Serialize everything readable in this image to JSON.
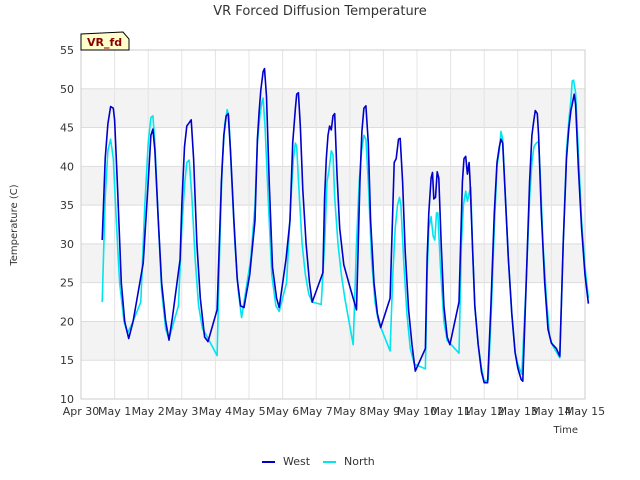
{
  "chart_data": {
    "type": "line",
    "title": "VR Forced Diffusion Temperature",
    "xlabel": "Time",
    "ylabel": "Temperature (C)",
    "badge": "VR_fd",
    "xlim": [
      0,
      15
    ],
    "ylim": [
      10,
      55
    ],
    "xticks": [
      {
        "x": 0,
        "label": "Apr 30"
      },
      {
        "x": 1,
        "label": "May 1"
      },
      {
        "x": 2,
        "label": "May 2"
      },
      {
        "x": 3,
        "label": "May 3"
      },
      {
        "x": 4,
        "label": "May 4"
      },
      {
        "x": 5,
        "label": "May 5"
      },
      {
        "x": 6,
        "label": "May 6"
      },
      {
        "x": 7,
        "label": "May 7"
      },
      {
        "x": 8,
        "label": "May 8"
      },
      {
        "x": 9,
        "label": "May 9"
      },
      {
        "x": 10,
        "label": "May 10"
      },
      {
        "x": 11,
        "label": "May 11"
      },
      {
        "x": 12,
        "label": "May 12"
      },
      {
        "x": 13,
        "label": "May 13"
      },
      {
        "x": 14,
        "label": "May 14"
      },
      {
        "x": 15,
        "label": "May 15"
      }
    ],
    "yticks": [
      10,
      15,
      20,
      25,
      30,
      35,
      40,
      45,
      50,
      55
    ],
    "grid": true,
    "legend_position": "bottom-center",
    "series": [
      {
        "name": "West",
        "color": "#0000cc",
        "points": [
          [
            0.63,
            30.5
          ],
          [
            0.72,
            41
          ],
          [
            0.8,
            45.5
          ],
          [
            0.88,
            47.7
          ],
          [
            0.96,
            47.5
          ],
          [
            1.0,
            46
          ],
          [
            1.08,
            38
          ],
          [
            1.2,
            25
          ],
          [
            1.3,
            20
          ],
          [
            1.42,
            17.8
          ],
          [
            1.55,
            20
          ],
          [
            1.85,
            27.5
          ],
          [
            2.0,
            38
          ],
          [
            2.08,
            44
          ],
          [
            2.14,
            44.8
          ],
          [
            2.2,
            42
          ],
          [
            2.3,
            33
          ],
          [
            2.4,
            25
          ],
          [
            2.52,
            20
          ],
          [
            2.62,
            17.6
          ],
          [
            2.72,
            20.5
          ],
          [
            2.95,
            28
          ],
          [
            3.0,
            35
          ],
          [
            3.08,
            42.5
          ],
          [
            3.15,
            45.2
          ],
          [
            3.2,
            45.5
          ],
          [
            3.28,
            46
          ],
          [
            3.35,
            41
          ],
          [
            3.45,
            30
          ],
          [
            3.55,
            23
          ],
          [
            3.68,
            18
          ],
          [
            3.78,
            17.4
          ],
          [
            4.05,
            21.5
          ],
          [
            4.18,
            38
          ],
          [
            4.25,
            44
          ],
          [
            4.32,
            46.5
          ],
          [
            4.38,
            46.8
          ],
          [
            4.45,
            42
          ],
          [
            4.55,
            33
          ],
          [
            4.65,
            25.5
          ],
          [
            4.75,
            22
          ],
          [
            4.85,
            21.8
          ],
          [
            5.02,
            26
          ],
          [
            5.18,
            33
          ],
          [
            5.25,
            43.5
          ],
          [
            5.3,
            47
          ],
          [
            5.35,
            49.8
          ],
          [
            5.42,
            52.2
          ],
          [
            5.46,
            52.6
          ],
          [
            5.52,
            49
          ],
          [
            5.6,
            38
          ],
          [
            5.7,
            27
          ],
          [
            5.82,
            23
          ],
          [
            5.9,
            21.8
          ],
          [
            6.1,
            28
          ],
          [
            6.22,
            33
          ],
          [
            6.3,
            43
          ],
          [
            6.38,
            47.5
          ],
          [
            6.42,
            49.3
          ],
          [
            6.47,
            49.5
          ],
          [
            6.53,
            45
          ],
          [
            6.6,
            37
          ],
          [
            6.7,
            30
          ],
          [
            6.8,
            25
          ],
          [
            6.88,
            22.5
          ],
          [
            7.2,
            26.3
          ],
          [
            7.25,
            36
          ],
          [
            7.3,
            41
          ],
          [
            7.35,
            44
          ],
          [
            7.4,
            45.2
          ],
          [
            7.45,
            44.7
          ],
          [
            7.5,
            46.5
          ],
          [
            7.55,
            46.8
          ],
          [
            7.62,
            39
          ],
          [
            7.7,
            32
          ],
          [
            7.82,
            27.3
          ],
          [
            8.0,
            24.5
          ],
          [
            8.2,
            21.5
          ],
          [
            8.3,
            38
          ],
          [
            8.36,
            44.5
          ],
          [
            8.42,
            47.5
          ],
          [
            8.48,
            47.8
          ],
          [
            8.55,
            43
          ],
          [
            8.62,
            33
          ],
          [
            8.72,
            25
          ],
          [
            8.82,
            21
          ],
          [
            8.92,
            19.2
          ],
          [
            9.2,
            23
          ],
          [
            9.32,
            40.5
          ],
          [
            9.38,
            41
          ],
          [
            9.45,
            43.5
          ],
          [
            9.5,
            43.6
          ],
          [
            9.57,
            38
          ],
          [
            9.65,
            29
          ],
          [
            9.75,
            21.5
          ],
          [
            9.85,
            17
          ],
          [
            9.95,
            13.6
          ],
          [
            10.25,
            16.5
          ],
          [
            10.3,
            28
          ],
          [
            10.35,
            34
          ],
          [
            10.42,
            38.5
          ],
          [
            10.46,
            39.2
          ],
          [
            10.5,
            35.8
          ],
          [
            10.55,
            36
          ],
          [
            10.6,
            39.3
          ],
          [
            10.65,
            38.5
          ],
          [
            10.72,
            30
          ],
          [
            10.8,
            22
          ],
          [
            10.9,
            18
          ],
          [
            10.98,
            17
          ],
          [
            11.25,
            22.5
          ],
          [
            11.35,
            38
          ],
          [
            11.4,
            41
          ],
          [
            11.45,
            41.3
          ],
          [
            11.5,
            39
          ],
          [
            11.55,
            40.5
          ],
          [
            11.58,
            38
          ],
          [
            11.65,
            30
          ],
          [
            11.72,
            22
          ],
          [
            11.82,
            17
          ],
          [
            11.92,
            13.5
          ],
          [
            12.0,
            12.1
          ],
          [
            12.1,
            12.1
          ],
          [
            12.2,
            22
          ],
          [
            12.3,
            34
          ],
          [
            12.38,
            40.5
          ],
          [
            12.45,
            42.5
          ],
          [
            12.5,
            43.5
          ],
          [
            12.55,
            43
          ],
          [
            12.62,
            37
          ],
          [
            12.72,
            28
          ],
          [
            12.82,
            21
          ],
          [
            12.92,
            16
          ],
          [
            13.0,
            14
          ],
          [
            13.1,
            12.5
          ],
          [
            13.15,
            12.3
          ],
          [
            13.25,
            25
          ],
          [
            13.35,
            38
          ],
          [
            13.42,
            44
          ],
          [
            13.48,
            46
          ],
          [
            13.52,
            47.2
          ],
          [
            13.58,
            46.8
          ],
          [
            13.62,
            44
          ],
          [
            13.7,
            34
          ],
          [
            13.8,
            25
          ],
          [
            13.9,
            19
          ],
          [
            14.0,
            17.2
          ],
          [
            14.15,
            16.5
          ],
          [
            14.25,
            15.5
          ],
          [
            14.35,
            30
          ],
          [
            14.45,
            41
          ],
          [
            14.52,
            45
          ],
          [
            14.58,
            47.2
          ],
          [
            14.62,
            48
          ],
          [
            14.68,
            49.3
          ],
          [
            14.72,
            48
          ],
          [
            14.8,
            40
          ],
          [
            14.9,
            32
          ],
          [
            15.0,
            26
          ],
          [
            15.1,
            22.3
          ]
        ]
      },
      {
        "name": "North",
        "color": "#00e5ee",
        "points": [
          [
            0.63,
            22.5
          ],
          [
            0.72,
            36
          ],
          [
            0.8,
            42
          ],
          [
            0.88,
            43.5
          ],
          [
            0.96,
            41
          ],
          [
            1.05,
            33
          ],
          [
            1.15,
            25
          ],
          [
            1.28,
            20
          ],
          [
            1.38,
            18.5
          ],
          [
            1.5,
            19.5
          ],
          [
            1.78,
            22.5
          ],
          [
            1.9,
            35
          ],
          [
            2.0,
            43
          ],
          [
            2.08,
            46.3
          ],
          [
            2.14,
            46.5
          ],
          [
            2.2,
            43
          ],
          [
            2.3,
            33
          ],
          [
            2.4,
            24
          ],
          [
            2.52,
            19
          ],
          [
            2.62,
            17.8
          ],
          [
            2.9,
            22
          ],
          [
            3.0,
            32
          ],
          [
            3.08,
            37.5
          ],
          [
            3.15,
            40.5
          ],
          [
            3.22,
            40.8
          ],
          [
            3.3,
            36
          ],
          [
            3.4,
            28
          ],
          [
            3.5,
            22
          ],
          [
            3.62,
            19
          ],
          [
            3.72,
            18.3
          ],
          [
            4.05,
            15.6
          ],
          [
            4.12,
            28
          ],
          [
            4.2,
            40
          ],
          [
            4.28,
            45.5
          ],
          [
            4.35,
            47.3
          ],
          [
            4.4,
            46.5
          ],
          [
            4.48,
            39
          ],
          [
            4.58,
            30
          ],
          [
            4.68,
            24
          ],
          [
            4.78,
            20.5
          ],
          [
            5.05,
            28
          ],
          [
            5.18,
            35
          ],
          [
            5.25,
            43
          ],
          [
            5.32,
            46.5
          ],
          [
            5.38,
            48.2
          ],
          [
            5.42,
            48.8
          ],
          [
            5.48,
            45
          ],
          [
            5.58,
            35
          ],
          [
            5.68,
            26
          ],
          [
            5.8,
            22
          ],
          [
            5.9,
            21.3
          ],
          [
            6.12,
            25
          ],
          [
            6.25,
            36
          ],
          [
            6.32,
            41
          ],
          [
            6.38,
            43
          ],
          [
            6.42,
            42.5
          ],
          [
            6.5,
            36
          ],
          [
            6.58,
            30
          ],
          [
            6.68,
            26
          ],
          [
            6.78,
            23.5
          ],
          [
            6.88,
            22.5
          ],
          [
            7.15,
            22.2
          ],
          [
            7.25,
            30
          ],
          [
            7.32,
            38
          ],
          [
            7.38,
            39.5
          ],
          [
            7.45,
            42
          ],
          [
            7.5,
            41.5
          ],
          [
            7.55,
            36
          ],
          [
            7.65,
            30
          ],
          [
            7.75,
            26
          ],
          [
            7.85,
            23
          ],
          [
            8.1,
            17
          ],
          [
            8.2,
            30
          ],
          [
            8.28,
            38
          ],
          [
            8.35,
            42
          ],
          [
            8.42,
            44
          ],
          [
            8.48,
            43.5
          ],
          [
            8.55,
            38
          ],
          [
            8.65,
            28
          ],
          [
            8.75,
            22.5
          ],
          [
            8.85,
            20
          ],
          [
            9.2,
            16.2
          ],
          [
            9.28,
            26
          ],
          [
            9.35,
            32
          ],
          [
            9.42,
            35
          ],
          [
            9.48,
            36
          ],
          [
            9.52,
            35
          ],
          [
            9.6,
            28
          ],
          [
            9.7,
            21
          ],
          [
            9.8,
            16.5
          ],
          [
            9.92,
            14.5
          ],
          [
            10.25,
            13.9
          ],
          [
            10.3,
            26
          ],
          [
            10.35,
            32
          ],
          [
            10.42,
            33.5
          ],
          [
            10.48,
            31
          ],
          [
            10.53,
            30.5
          ],
          [
            10.58,
            34
          ],
          [
            10.62,
            34
          ],
          [
            10.7,
            27
          ],
          [
            10.8,
            20
          ],
          [
            10.9,
            17.5
          ],
          [
            10.98,
            17.2
          ],
          [
            11.25,
            15.9
          ],
          [
            11.32,
            30
          ],
          [
            11.38,
            35
          ],
          [
            11.45,
            36.8
          ],
          [
            11.5,
            35.5
          ],
          [
            11.55,
            36.5
          ],
          [
            11.6,
            37.3
          ],
          [
            11.65,
            30
          ],
          [
            11.72,
            22
          ],
          [
            11.82,
            17
          ],
          [
            11.92,
            14
          ],
          [
            12.0,
            12.2
          ],
          [
            12.12,
            12.5
          ],
          [
            12.2,
            20
          ],
          [
            12.3,
            32
          ],
          [
            12.38,
            40
          ],
          [
            12.45,
            42
          ],
          [
            12.5,
            44.5
          ],
          [
            12.55,
            43.5
          ],
          [
            12.62,
            37
          ],
          [
            12.72,
            28
          ],
          [
            12.82,
            21
          ],
          [
            12.92,
            16
          ],
          [
            13.0,
            14.5
          ],
          [
            13.12,
            13.2
          ],
          [
            13.25,
            25
          ],
          [
            13.35,
            36
          ],
          [
            13.42,
            40.5
          ],
          [
            13.48,
            42.5
          ],
          [
            13.55,
            43
          ],
          [
            13.62,
            43.2
          ],
          [
            13.68,
            38
          ],
          [
            13.75,
            30
          ],
          [
            13.85,
            23
          ],
          [
            13.95,
            18
          ],
          [
            14.05,
            16.8
          ],
          [
            14.25,
            15.3
          ],
          [
            14.35,
            30
          ],
          [
            14.45,
            42
          ],
          [
            14.52,
            46
          ],
          [
            14.58,
            48.5
          ],
          [
            14.62,
            51
          ],
          [
            14.66,
            51.1
          ],
          [
            14.72,
            49.5
          ],
          [
            14.8,
            42
          ],
          [
            14.9,
            33
          ],
          [
            15.0,
            27
          ],
          [
            15.1,
            23
          ]
        ]
      }
    ]
  }
}
